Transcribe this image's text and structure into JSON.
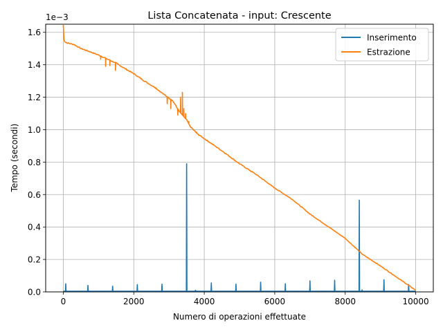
{
  "chart_data": {
    "type": "line",
    "title": "Lista Concatenata - input: Crescente",
    "xlabel": "Numero di operazioni effettuate",
    "ylabel": "Tempo (secondi)",
    "y_scale_label": "1e−3",
    "xlim": [
      -500,
      10500
    ],
    "ylim": [
      0,
      1.65
    ],
    "x_ticks": [
      0,
      2000,
      4000,
      6000,
      8000,
      10000
    ],
    "x_tick_labels": [
      "0",
      "2000",
      "4000",
      "6000",
      "8000",
      "10000"
    ],
    "y_ticks": [
      0.0,
      0.2,
      0.4,
      0.6,
      0.8,
      1.0,
      1.2,
      1.4,
      1.6
    ],
    "y_tick_labels": [
      "0.0",
      "0.2",
      "0.4",
      "0.6",
      "0.8",
      "1.0",
      "1.2",
      "1.4",
      "1.6"
    ],
    "grid": true,
    "legend_position": "top-right",
    "series": [
      {
        "name": "Inserimento",
        "color": "#1f77b4",
        "baseline": 0.004,
        "x_range": [
          0,
          10000
        ],
        "spikes": [
          {
            "x": 70,
            "y": 0.05
          },
          {
            "x": 700,
            "y": 0.04
          },
          {
            "x": 1400,
            "y": 0.035
          },
          {
            "x": 2100,
            "y": 0.045
          },
          {
            "x": 2800,
            "y": 0.048
          },
          {
            "x": 3500,
            "y": 0.79
          },
          {
            "x": 3750,
            "y": 0.01
          },
          {
            "x": 4200,
            "y": 0.055
          },
          {
            "x": 4900,
            "y": 0.048
          },
          {
            "x": 5600,
            "y": 0.06
          },
          {
            "x": 6300,
            "y": 0.05
          },
          {
            "x": 7000,
            "y": 0.068
          },
          {
            "x": 7700,
            "y": 0.072
          },
          {
            "x": 8400,
            "y": 0.565
          },
          {
            "x": 8480,
            "y": 0.012
          },
          {
            "x": 9100,
            "y": 0.075
          },
          {
            "x": 9800,
            "y": 0.045
          }
        ]
      },
      {
        "name": "Estrazione",
        "color": "#ff7f0e",
        "points": [
          [
            0,
            1.645
          ],
          [
            15,
            1.56
          ],
          [
            30,
            1.545
          ],
          [
            100,
            1.535
          ],
          [
            300,
            1.525
          ],
          [
            500,
            1.5
          ],
          [
            700,
            1.485
          ],
          [
            1000,
            1.46
          ],
          [
            1200,
            1.44
          ],
          [
            1500,
            1.41
          ],
          [
            1800,
            1.37
          ],
          [
            2000,
            1.345
          ],
          [
            2300,
            1.3
          ],
          [
            2600,
            1.26
          ],
          [
            2900,
            1.21
          ],
          [
            3100,
            1.18
          ],
          [
            3300,
            1.11
          ],
          [
            3500,
            1.06
          ],
          [
            3600,
            1.02
          ],
          [
            3800,
            0.975
          ],
          [
            4000,
            0.945
          ],
          [
            4500,
            0.87
          ],
          [
            5000,
            0.79
          ],
          [
            5500,
            0.72
          ],
          [
            6000,
            0.64
          ],
          [
            6500,
            0.57
          ],
          [
            7000,
            0.48
          ],
          [
            7500,
            0.405
          ],
          [
            8000,
            0.33
          ],
          [
            8500,
            0.23
          ],
          [
            9000,
            0.16
          ],
          [
            9500,
            0.085
          ],
          [
            10000,
            0.01
          ]
        ],
        "spikes": [
          {
            "x": 1060,
            "y": 1.435
          },
          {
            "x": 1200,
            "y": 1.39
          },
          {
            "x": 1320,
            "y": 1.395
          },
          {
            "x": 1480,
            "y": 1.365
          },
          {
            "x": 2620,
            "y": 1.26
          },
          {
            "x": 2950,
            "y": 1.16
          },
          {
            "x": 3050,
            "y": 1.13
          },
          {
            "x": 3250,
            "y": 1.09
          },
          {
            "x": 3330,
            "y": 1.2
          },
          {
            "x": 3380,
            "y": 1.23
          },
          {
            "x": 3420,
            "y": 1.13
          },
          {
            "x": 3470,
            "y": 1.1
          },
          {
            "x": 3560,
            "y": 1.05
          },
          {
            "x": 3780,
            "y": 0.985
          }
        ]
      }
    ]
  }
}
